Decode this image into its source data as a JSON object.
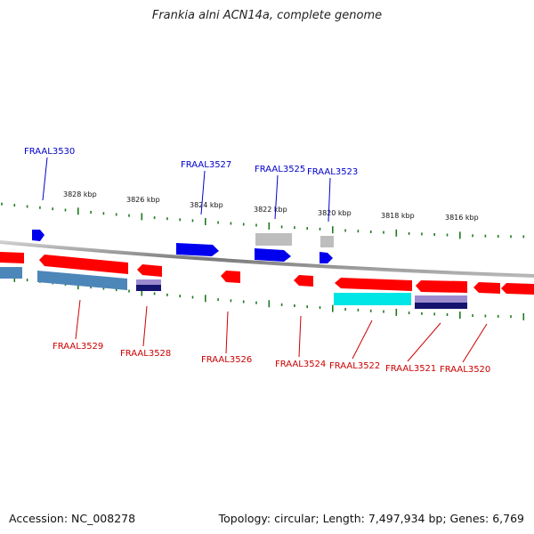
{
  "title": "Frankia alni ACN14a, complete genome",
  "footer": {
    "accession": "Accession: NC_008278",
    "summary": "Topology: circular; Length: 7,497,934 bp; Genes: 6,769"
  },
  "colors": {
    "backbone": "#9a9a9a",
    "ticks": "#1e7a1e",
    "cds": "#0000ee",
    "cds_rev": "#ff0000",
    "feature_grey": "#bdbdbd",
    "feature_steelblue": "#4d86b8",
    "feature_navy": "#14146e",
    "feature_cyan": "#00e5e5",
    "feature_lavender": "#9c8ccf",
    "label_fwd": "#0000cc",
    "label_rev": "#cc0000"
  },
  "scale_labels": [
    {
      "text": "3828 kbp"
    },
    {
      "text": "3826 kbp"
    },
    {
      "text": "3824 kbp"
    },
    {
      "text": "3822 kbp"
    },
    {
      "text": "3820 kbp"
    },
    {
      "text": "3818 kbp"
    },
    {
      "text": "3816 kbp"
    }
  ],
  "forward_genes": [
    {
      "label": "FRAAL3530"
    },
    {
      "label": "FRAAL3527"
    },
    {
      "label": "FRAAL3525"
    },
    {
      "label": "FRAAL3523"
    }
  ],
  "reverse_genes": [
    {
      "label": "FRAAL3529"
    },
    {
      "label": "FRAAL3528"
    },
    {
      "label": "FRAAL3526"
    },
    {
      "label": "FRAAL3524"
    },
    {
      "label": "FRAAL3522"
    },
    {
      "label": "FRAAL3521"
    },
    {
      "label": "FRAAL3520"
    }
  ]
}
